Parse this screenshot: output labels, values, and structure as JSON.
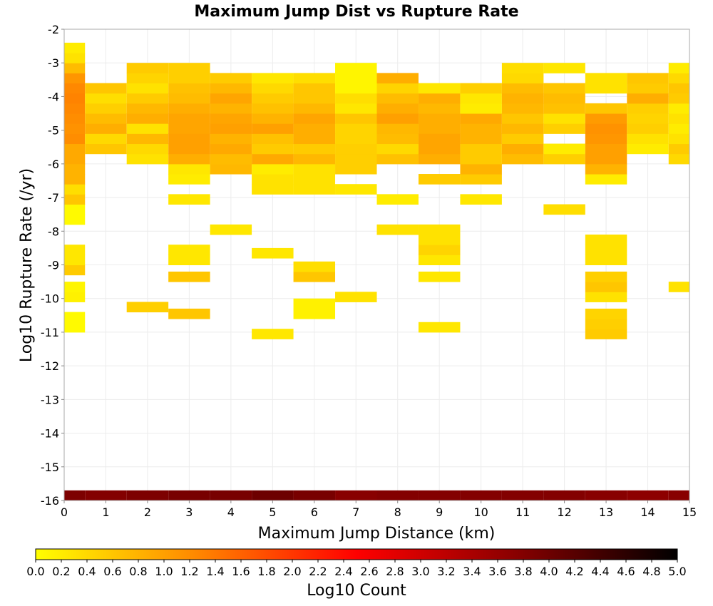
{
  "chart_data": {
    "type": "heatmap",
    "title": "Maximum Jump Dist vs Rupture Rate",
    "xlabel": "Maximum Jump Distance (km)",
    "ylabel": "Log10 Rupture Rate (/yr)",
    "xlim": [
      0,
      15
    ],
    "ylim": [
      -16,
      -2
    ],
    "x_ticks": [
      "0",
      "1",
      "2",
      "3",
      "4",
      "5",
      "6",
      "7",
      "8",
      "9",
      "10",
      "11",
      "12",
      "13",
      "14",
      "15"
    ],
    "y_ticks": [
      "-16",
      "-15",
      "-14",
      "-13",
      "-12",
      "-11",
      "-10",
      "-9",
      "-8",
      "-7",
      "-6",
      "-5",
      "-4",
      "-3",
      "-2"
    ],
    "x_bin_width": 1,
    "y_bin_height": 0.3,
    "colorbar": {
      "label": "Log10 Count",
      "range": [
        0,
        5
      ],
      "ticks": [
        "0.0",
        "0.2",
        "0.4",
        "0.6",
        "0.8",
        "1.0",
        "1.2",
        "1.4",
        "1.6",
        "1.8",
        "2.0",
        "2.2",
        "2.4",
        "2.6",
        "2.8",
        "3.0",
        "3.2",
        "3.4",
        "3.6",
        "3.8",
        "4.0",
        "4.2",
        "4.4",
        "4.6",
        "4.8",
        "5.0"
      ],
      "colors": [
        "#ffff00",
        "#ff8800",
        "#ff0000",
        "#880000",
        "#000000"
      ]
    },
    "grid": true,
    "columns": [
      {
        "x": 0,
        "cells": [
          [
            -16.0,
            3.85
          ],
          [
            -11.0,
            0.05
          ],
          [
            -10.7,
            0.05
          ],
          [
            -10.1,
            0.15
          ],
          [
            -9.8,
            0.1
          ],
          [
            -9.3,
            0.55
          ],
          [
            -9.0,
            0.25
          ],
          [
            -8.7,
            0.25
          ],
          [
            -7.8,
            0.05
          ],
          [
            -7.5,
            0.05
          ],
          [
            -7.2,
            0.6
          ],
          [
            -6.9,
            0.35
          ],
          [
            -6.6,
            0.8
          ],
          [
            -6.3,
            0.8
          ],
          [
            -6.0,
            0.9
          ],
          [
            -5.7,
            0.9
          ],
          [
            -5.4,
            1.2
          ],
          [
            -5.1,
            1.15
          ],
          [
            -4.8,
            1.2
          ],
          [
            -4.5,
            1.25
          ],
          [
            -4.2,
            1.3
          ],
          [
            -3.9,
            1.25
          ],
          [
            -3.6,
            1.1
          ],
          [
            -3.3,
            0.7
          ],
          [
            -3.0,
            0.3
          ],
          [
            -2.7,
            0.2
          ]
        ]
      },
      {
        "x": 1,
        "cells": [
          [
            -16.0,
            3.8
          ],
          [
            -5.7,
            0.6
          ],
          [
            -5.4,
            0.4
          ],
          [
            -5.1,
            0.85
          ],
          [
            -4.8,
            0.7
          ],
          [
            -4.5,
            0.5
          ],
          [
            -4.2,
            0.35
          ],
          [
            -3.9,
            0.6
          ]
        ]
      },
      {
        "x": 2,
        "cells": [
          [
            -16.0,
            3.85
          ],
          [
            -10.4,
            0.5
          ],
          [
            -6.0,
            0.3
          ],
          [
            -5.7,
            0.4
          ],
          [
            -5.4,
            0.75
          ],
          [
            -5.1,
            0.3
          ],
          [
            -4.8,
            0.85
          ],
          [
            -4.5,
            0.75
          ],
          [
            -4.2,
            0.55
          ],
          [
            -3.9,
            0.3
          ],
          [
            -3.6,
            0.45
          ],
          [
            -3.3,
            0.55
          ]
        ]
      },
      {
        "x": 3,
        "cells": [
          [
            -16.0,
            3.9
          ],
          [
            -10.6,
            0.6
          ],
          [
            -9.5,
            0.6
          ],
          [
            -9.0,
            0.25
          ],
          [
            -8.7,
            0.25
          ],
          [
            -7.2,
            0.25
          ],
          [
            -6.6,
            0.2
          ],
          [
            -6.3,
            0.25
          ],
          [
            -6.0,
            0.85
          ],
          [
            -5.7,
            1.0
          ],
          [
            -5.4,
            1.0
          ],
          [
            -5.1,
            0.95
          ],
          [
            -4.8,
            0.95
          ],
          [
            -4.5,
            0.85
          ],
          [
            -4.2,
            0.7
          ],
          [
            -3.9,
            0.65
          ],
          [
            -3.6,
            0.5
          ],
          [
            -3.3,
            0.5
          ]
        ]
      },
      {
        "x": 4,
        "cells": [
          [
            -16.0,
            3.9
          ],
          [
            -8.1,
            0.25
          ],
          [
            -6.3,
            0.75
          ],
          [
            -6.0,
            0.7
          ],
          [
            -5.7,
            0.9
          ],
          [
            -5.4,
            0.8
          ],
          [
            -5.1,
            1.0
          ],
          [
            -4.8,
            0.95
          ],
          [
            -4.5,
            0.8
          ],
          [
            -4.2,
            0.95
          ],
          [
            -3.9,
            0.75
          ],
          [
            -3.6,
            0.55
          ]
        ]
      },
      {
        "x": 5,
        "cells": [
          [
            -16.0,
            4.0
          ],
          [
            -11.2,
            0.25
          ],
          [
            -8.8,
            0.25
          ],
          [
            -6.9,
            0.3
          ],
          [
            -6.6,
            0.3
          ],
          [
            -6.3,
            0.2
          ],
          [
            -6.0,
            0.9
          ],
          [
            -5.7,
            0.55
          ],
          [
            -5.4,
            0.65
          ],
          [
            -5.1,
            1.0
          ],
          [
            -4.8,
            0.8
          ],
          [
            -4.5,
            0.65
          ],
          [
            -4.2,
            0.55
          ],
          [
            -3.9,
            0.4
          ],
          [
            -3.6,
            0.25
          ]
        ]
      },
      {
        "x": 6,
        "cells": [
          [
            -16.0,
            3.9
          ],
          [
            -10.6,
            0.15
          ],
          [
            -10.3,
            0.15
          ],
          [
            -9.5,
            0.6
          ],
          [
            -9.2,
            0.35
          ],
          [
            -6.9,
            0.3
          ],
          [
            -6.6,
            0.3
          ],
          [
            -6.3,
            0.3
          ],
          [
            -6.0,
            0.75
          ],
          [
            -5.7,
            0.55
          ],
          [
            -5.4,
            0.85
          ],
          [
            -5.1,
            0.85
          ],
          [
            -4.8,
            0.95
          ],
          [
            -4.5,
            0.75
          ],
          [
            -4.2,
            0.6
          ],
          [
            -3.9,
            0.6
          ],
          [
            -3.6,
            0.35
          ]
        ]
      },
      {
        "x": 7,
        "cells": [
          [
            -16.0,
            3.75
          ],
          [
            -10.1,
            0.3
          ],
          [
            -6.9,
            0.25
          ],
          [
            -6.3,
            0.5
          ],
          [
            -6.0,
            0.5
          ],
          [
            -5.7,
            0.5
          ],
          [
            -5.4,
            0.45
          ],
          [
            -5.1,
            0.45
          ],
          [
            -4.8,
            0.6
          ],
          [
            -4.5,
            0.25
          ],
          [
            -4.2,
            0.35
          ],
          [
            -3.9,
            0.1
          ],
          [
            -3.6,
            0.1
          ],
          [
            -3.3,
            0.1
          ]
        ]
      },
      {
        "x": 8,
        "cells": [
          [
            -16.0,
            3.8
          ],
          [
            -8.1,
            0.3
          ],
          [
            -7.2,
            0.2
          ],
          [
            -6.0,
            0.65
          ],
          [
            -5.7,
            0.4
          ],
          [
            -5.4,
            0.7
          ],
          [
            -5.1,
            0.75
          ],
          [
            -4.8,
            1.0
          ],
          [
            -4.5,
            0.85
          ],
          [
            -4.2,
            0.7
          ],
          [
            -3.9,
            0.45
          ],
          [
            -3.6,
            0.85
          ]
        ]
      },
      {
        "x": 9,
        "cells": [
          [
            -16.0,
            3.8
          ],
          [
            -11.0,
            0.25
          ],
          [
            -9.5,
            0.25
          ],
          [
            -9.0,
            0.25
          ],
          [
            -8.7,
            0.45
          ],
          [
            -8.4,
            0.3
          ],
          [
            -8.1,
            0.3
          ],
          [
            -6.6,
            0.55
          ],
          [
            -6.0,
            0.85
          ],
          [
            -5.7,
            0.95
          ],
          [
            -5.4,
            0.95
          ],
          [
            -5.1,
            0.85
          ],
          [
            -4.8,
            0.85
          ],
          [
            -4.5,
            0.75
          ],
          [
            -4.2,
            0.85
          ],
          [
            -3.9,
            0.25
          ]
        ]
      },
      {
        "x": 10,
        "cells": [
          [
            -16.0,
            3.8
          ],
          [
            -7.2,
            0.25
          ],
          [
            -6.6,
            0.55
          ],
          [
            -6.3,
            0.8
          ],
          [
            -6.0,
            0.55
          ],
          [
            -5.7,
            0.55
          ],
          [
            -5.4,
            0.8
          ],
          [
            -5.1,
            0.8
          ],
          [
            -4.8,
            0.9
          ],
          [
            -4.5,
            0.2
          ],
          [
            -4.2,
            0.25
          ],
          [
            -3.9,
            0.5
          ]
        ]
      },
      {
        "x": 11,
        "cells": [
          [
            -16.0,
            3.8
          ],
          [
            -6.0,
            0.7
          ],
          [
            -5.7,
            0.85
          ],
          [
            -5.4,
            0.55
          ],
          [
            -5.1,
            0.75
          ],
          [
            -4.8,
            0.6
          ],
          [
            -4.5,
            0.75
          ],
          [
            -4.2,
            0.8
          ],
          [
            -3.9,
            0.7
          ],
          [
            -3.6,
            0.4
          ],
          [
            -3.3,
            0.35
          ]
        ]
      },
      {
        "x": 12,
        "cells": [
          [
            -16.0,
            3.8
          ],
          [
            -7.5,
            0.35
          ],
          [
            -6.0,
            0.5
          ],
          [
            -5.7,
            0.2
          ],
          [
            -5.1,
            0.5
          ],
          [
            -4.8,
            0.3
          ],
          [
            -4.5,
            0.65
          ],
          [
            -4.2,
            0.7
          ],
          [
            -3.9,
            0.6
          ],
          [
            -3.3,
            0.25
          ]
        ]
      },
      {
        "x": 13,
        "cells": [
          [
            -16.0,
            3.75
          ],
          [
            -11.2,
            0.55
          ],
          [
            -10.9,
            0.5
          ],
          [
            -10.6,
            0.45
          ],
          [
            -10.1,
            0.3
          ],
          [
            -9.8,
            0.6
          ],
          [
            -9.5,
            0.5
          ],
          [
            -9.0,
            0.3
          ],
          [
            -8.7,
            0.3
          ],
          [
            -8.4,
            0.3
          ],
          [
            -6.6,
            0.2
          ],
          [
            -6.3,
            0.8
          ],
          [
            -6.0,
            1.0
          ],
          [
            -5.7,
            1.0
          ],
          [
            -5.4,
            1.1
          ],
          [
            -5.1,
            1.15
          ],
          [
            -4.8,
            1.05
          ],
          [
            -4.5,
            0.6
          ],
          [
            -3.9,
            0.3
          ],
          [
            -3.6,
            0.3
          ]
        ]
      },
      {
        "x": 14,
        "cells": [
          [
            -16.0,
            3.7
          ],
          [
            -5.7,
            0.2
          ],
          [
            -5.4,
            0.3
          ],
          [
            -5.1,
            0.5
          ],
          [
            -4.8,
            0.45
          ],
          [
            -4.5,
            0.5
          ],
          [
            -4.2,
            0.85
          ],
          [
            -3.9,
            0.55
          ],
          [
            -3.6,
            0.6
          ]
        ]
      },
      {
        "x": 15,
        "cells": [
          [
            -16.0,
            3.75
          ],
          [
            -9.8,
            0.3
          ],
          [
            -6.0,
            0.4
          ],
          [
            -5.7,
            0.55
          ],
          [
            -5.4,
            0.3
          ],
          [
            -5.1,
            0.2
          ],
          [
            -4.8,
            0.3
          ],
          [
            -4.5,
            0.2
          ],
          [
            -4.2,
            0.55
          ],
          [
            -3.9,
            0.6
          ],
          [
            -3.6,
            0.4
          ],
          [
            -3.3,
            0.2
          ]
        ]
      }
    ]
  }
}
